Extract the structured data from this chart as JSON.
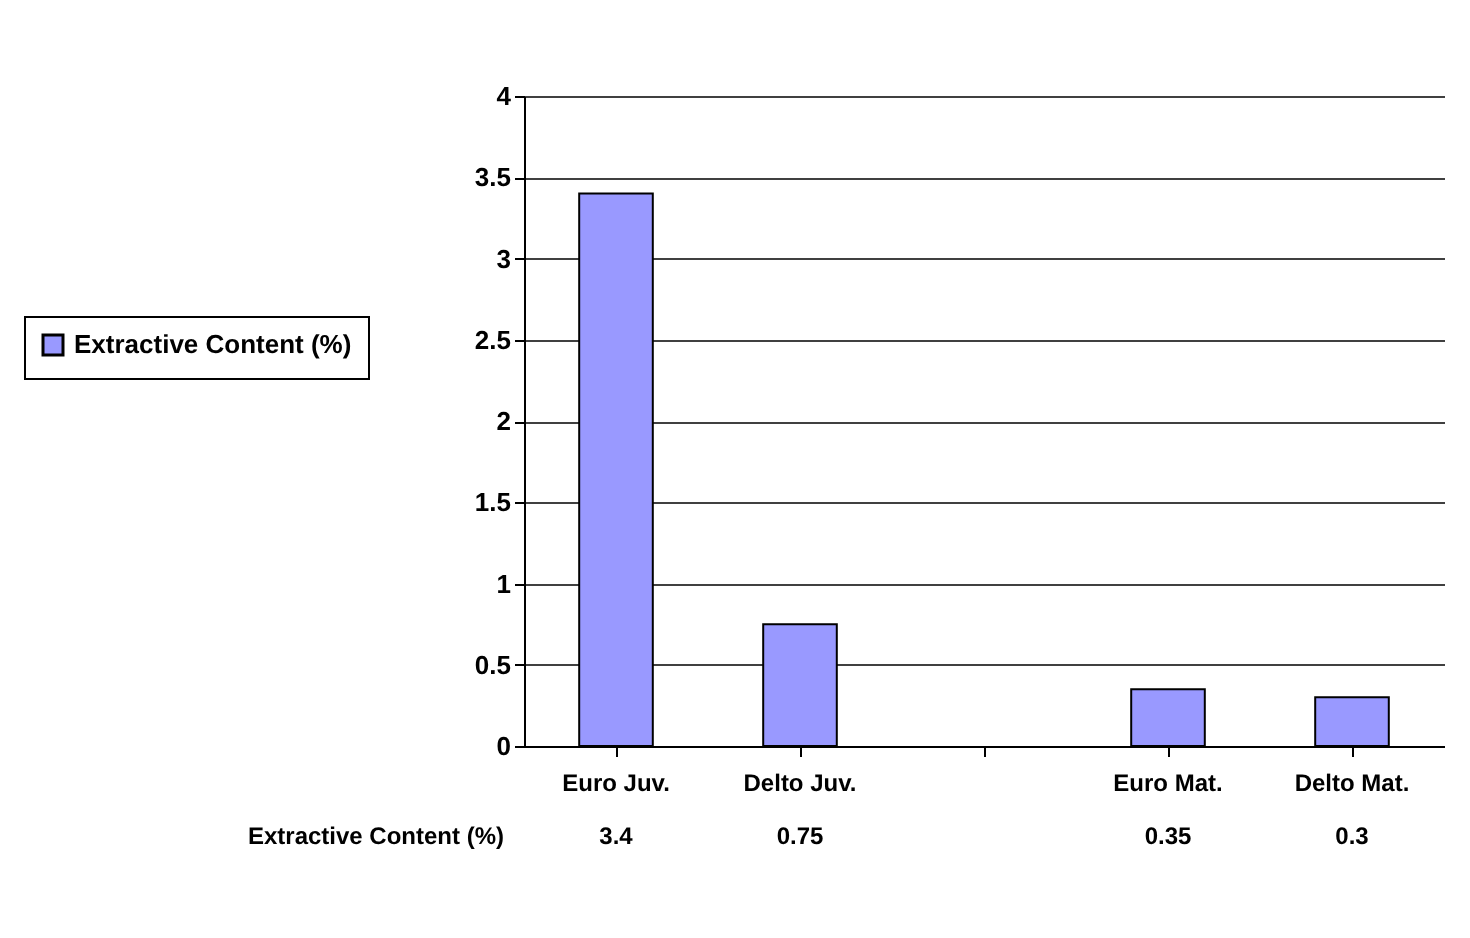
{
  "chart_data": {
    "type": "bar",
    "categories": [
      "Euro Juv.",
      "Delto Juv.",
      null,
      "Euro Mat.",
      "Delto Mat."
    ],
    "series": [
      {
        "name": "Extractive Content (%)",
        "color": "#9999ff",
        "values": [
          3.4,
          0.75,
          null,
          0.35,
          0.3
        ]
      }
    ],
    "ylim": [
      0,
      4
    ],
    "yticks": [
      0,
      0.5,
      1,
      1.5,
      2,
      2.5,
      3,
      3.5,
      4
    ],
    "grid": "y",
    "legend": "left",
    "data_labels": true
  }
}
